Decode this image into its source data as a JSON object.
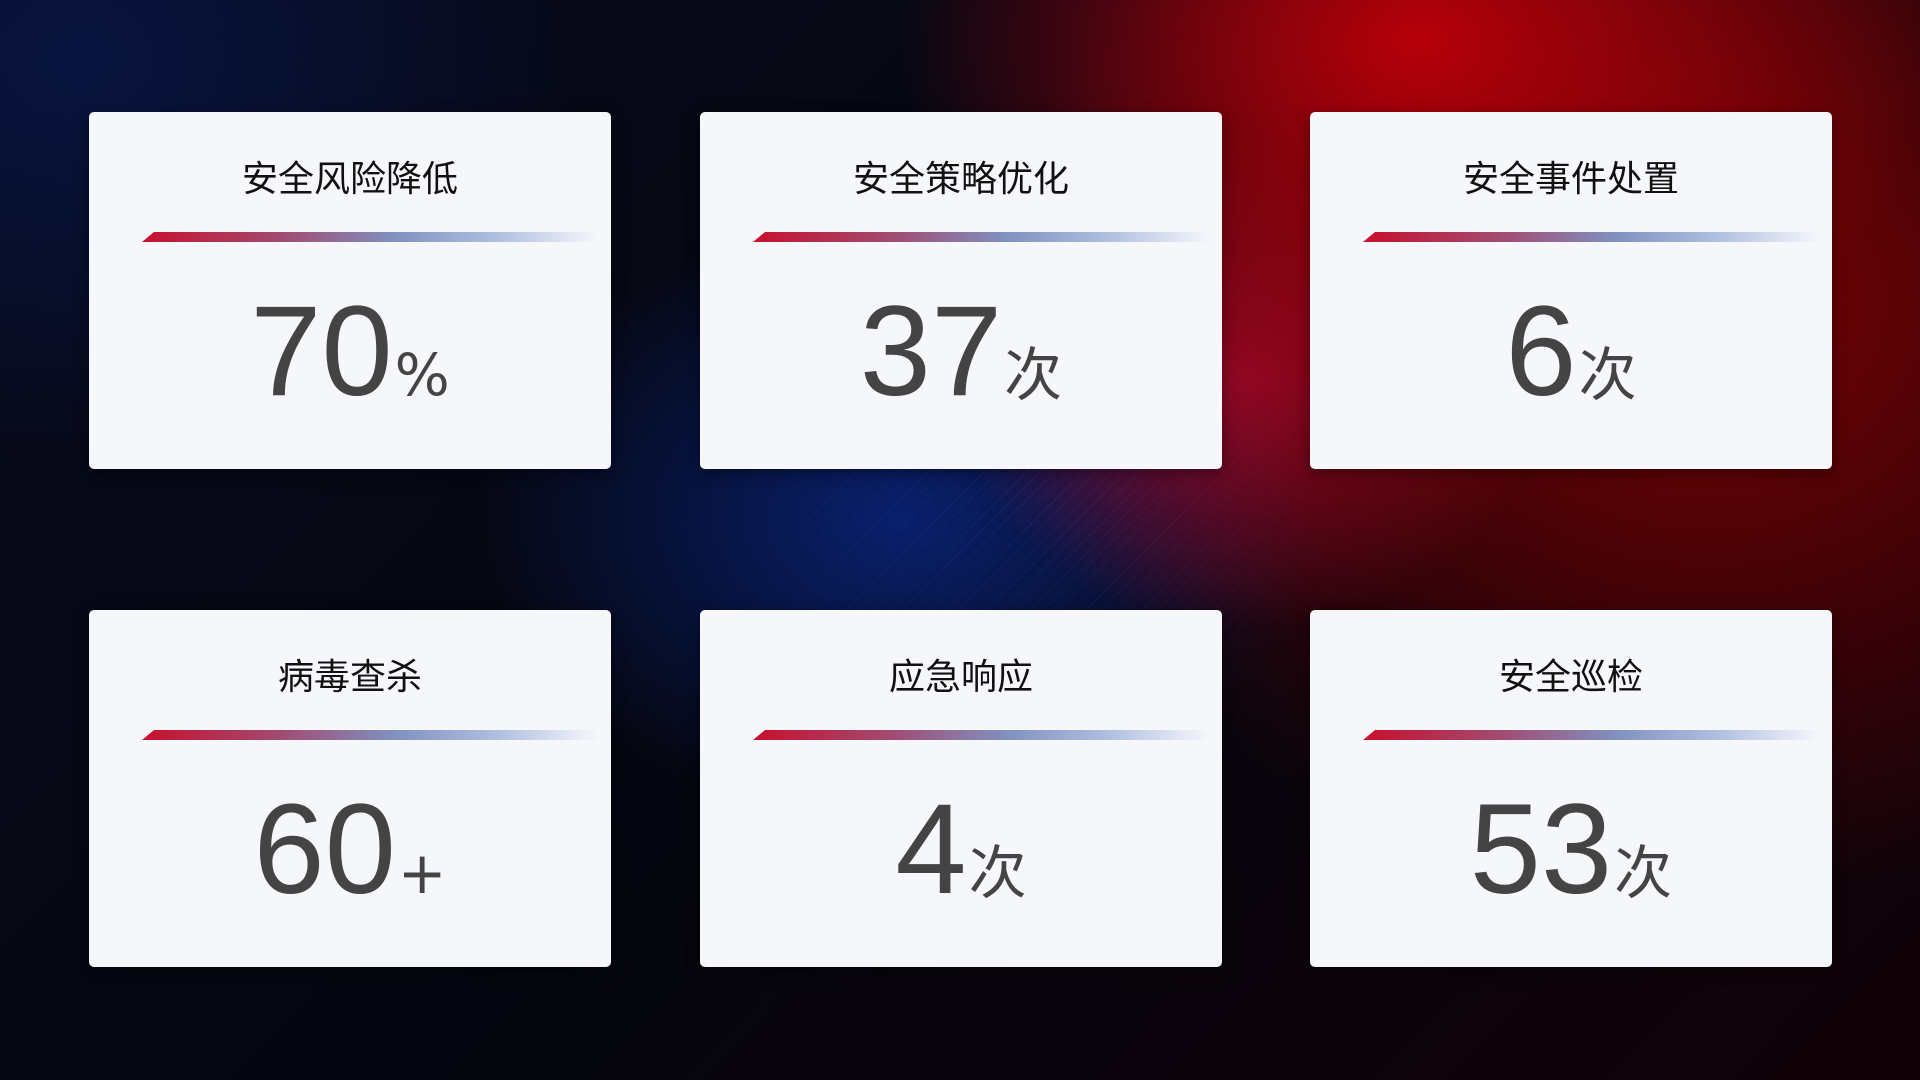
{
  "cards": [
    {
      "title": "安全风险降低",
      "value": "70",
      "unit": "%"
    },
    {
      "title": "安全策略优化",
      "value": "37",
      "unit": "次"
    },
    {
      "title": "安全事件处置",
      "value": "6",
      "unit": "次"
    },
    {
      "title": "病毒查杀",
      "value": "60",
      "unit": "+"
    },
    {
      "title": "应急响应",
      "value": "4",
      "unit": "次"
    },
    {
      "title": "安全巡检",
      "value": "53",
      "unit": "次"
    }
  ],
  "colors": {
    "accent_red": "#c8102e",
    "accent_blue": "#8090c0",
    "card_bg": "#f6f7fb",
    "value_text": "#444444"
  }
}
